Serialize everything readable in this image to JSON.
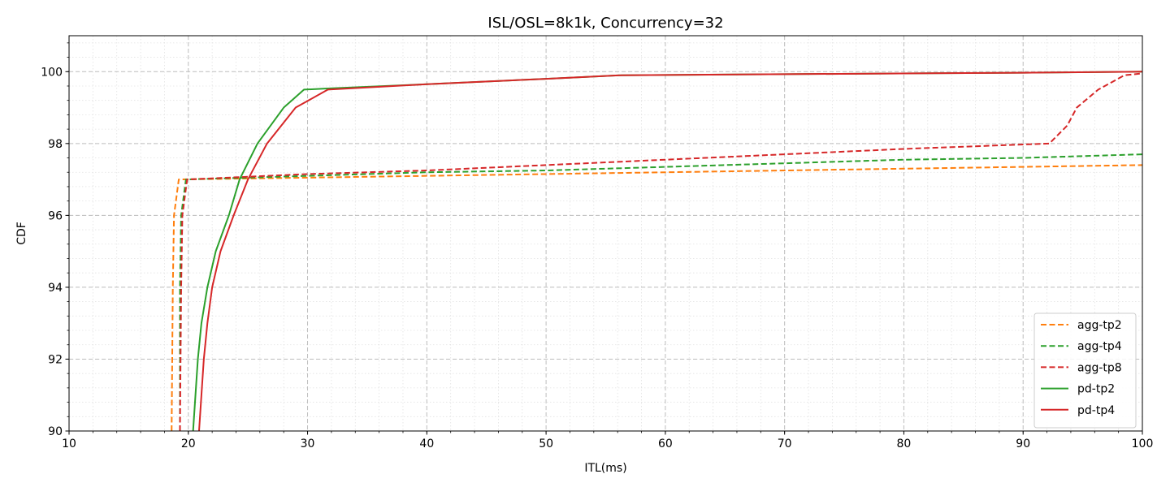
{
  "chart_data": {
    "type": "line",
    "title": "ISL/OSL=8k1k, Concurrency=32",
    "xlabel": "ITL(ms)",
    "ylabel": "CDF",
    "xlim": [
      10,
      100
    ],
    "ylim": [
      90,
      101
    ],
    "xticks": [
      10,
      20,
      30,
      40,
      50,
      60,
      70,
      80,
      90,
      100
    ],
    "yticks": [
      90,
      92,
      94,
      96,
      98,
      100
    ],
    "grid": true,
    "legend_position": "lower-right",
    "series": [
      {
        "name": "agg-tp2",
        "color": "#ff7f0e",
        "style": "dashed",
        "points": [
          [
            18.6,
            90
          ],
          [
            18.7,
            94
          ],
          [
            18.8,
            96
          ],
          [
            19.2,
            97
          ],
          [
            30,
            97.05
          ],
          [
            40,
            97.1
          ],
          [
            50,
            97.15
          ],
          [
            60,
            97.2
          ],
          [
            70,
            97.25
          ],
          [
            80,
            97.3
          ],
          [
            90,
            97.35
          ],
          [
            100,
            97.4
          ]
        ]
      },
      {
        "name": "agg-tp4",
        "color": "#2ca02c",
        "style": "dashed",
        "points": [
          [
            19.3,
            90
          ],
          [
            19.3,
            94
          ],
          [
            19.4,
            96
          ],
          [
            19.8,
            97
          ],
          [
            30,
            97.1
          ],
          [
            40,
            97.2
          ],
          [
            50,
            97.25
          ],
          [
            60,
            97.35
          ],
          [
            70,
            97.45
          ],
          [
            80,
            97.55
          ],
          [
            90,
            97.6
          ],
          [
            100,
            97.7
          ]
        ]
      },
      {
        "name": "agg-tp8",
        "color": "#d62728",
        "style": "dashed",
        "points": [
          [
            19.3,
            90
          ],
          [
            19.4,
            94
          ],
          [
            19.5,
            96
          ],
          [
            19.9,
            97
          ],
          [
            30,
            97.15
          ],
          [
            40,
            97.25
          ],
          [
            50,
            97.4
          ],
          [
            60,
            97.55
          ],
          [
            70,
            97.7
          ],
          [
            80,
            97.85
          ],
          [
            92.2,
            98
          ],
          [
            93.7,
            98.5
          ],
          [
            94.5,
            99
          ],
          [
            96.3,
            99.5
          ],
          [
            98.5,
            99.9
          ],
          [
            100,
            99.95
          ]
        ]
      },
      {
        "name": "pd-tp2",
        "color": "#2ca02c",
        "style": "solid",
        "points": [
          [
            20.4,
            90
          ],
          [
            20.6,
            91
          ],
          [
            20.8,
            92
          ],
          [
            21.1,
            93
          ],
          [
            21.6,
            94
          ],
          [
            22.3,
            95
          ],
          [
            23.4,
            96
          ],
          [
            24.3,
            97
          ],
          [
            25.8,
            98
          ],
          [
            28,
            99
          ],
          [
            29.7,
            99.5
          ],
          [
            31.5,
            99.53
          ],
          [
            40,
            99.65
          ],
          [
            50,
            99.8
          ],
          [
            56.3,
            99.9
          ],
          [
            70,
            99.93
          ],
          [
            90,
            99.97
          ],
          [
            100,
            100
          ]
        ]
      },
      {
        "name": "pd-tp4",
        "color": "#d62728",
        "style": "solid",
        "points": [
          [
            20.9,
            90
          ],
          [
            21.1,
            91
          ],
          [
            21.3,
            92
          ],
          [
            21.6,
            93
          ],
          [
            22,
            94
          ],
          [
            22.7,
            95
          ],
          [
            23.8,
            96
          ],
          [
            25,
            97
          ],
          [
            26.6,
            98
          ],
          [
            29,
            99
          ],
          [
            31.7,
            99.5
          ],
          [
            40,
            99.65
          ],
          [
            50,
            99.8
          ],
          [
            56.3,
            99.9
          ],
          [
            70,
            99.93
          ],
          [
            90,
            99.97
          ],
          [
            100,
            100
          ]
        ]
      }
    ]
  }
}
